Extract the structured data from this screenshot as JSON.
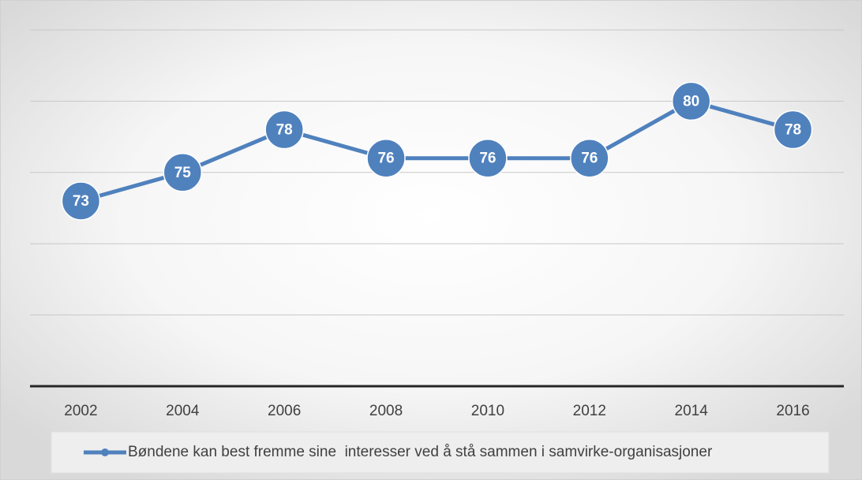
{
  "chart_data": {
    "type": "line",
    "categories": [
      "2002",
      "2004",
      "2006",
      "2008",
      "2010",
      "2012",
      "2014",
      "2016"
    ],
    "series": [
      {
        "name": "Bøndene kan best fremme sine  interesser ved å stå sammen i samvirke-organisasjoner",
        "color": "#4f81bd",
        "values": [
          73,
          75,
          78,
          76,
          76,
          76,
          80,
          78
        ]
      }
    ],
    "ylim": [
      60,
      85
    ],
    "yticks": [
      60,
      65,
      70,
      75,
      80,
      85
    ],
    "show_ytick_labels": false,
    "grid": true,
    "data_labels": true,
    "legend": "bottom"
  }
}
